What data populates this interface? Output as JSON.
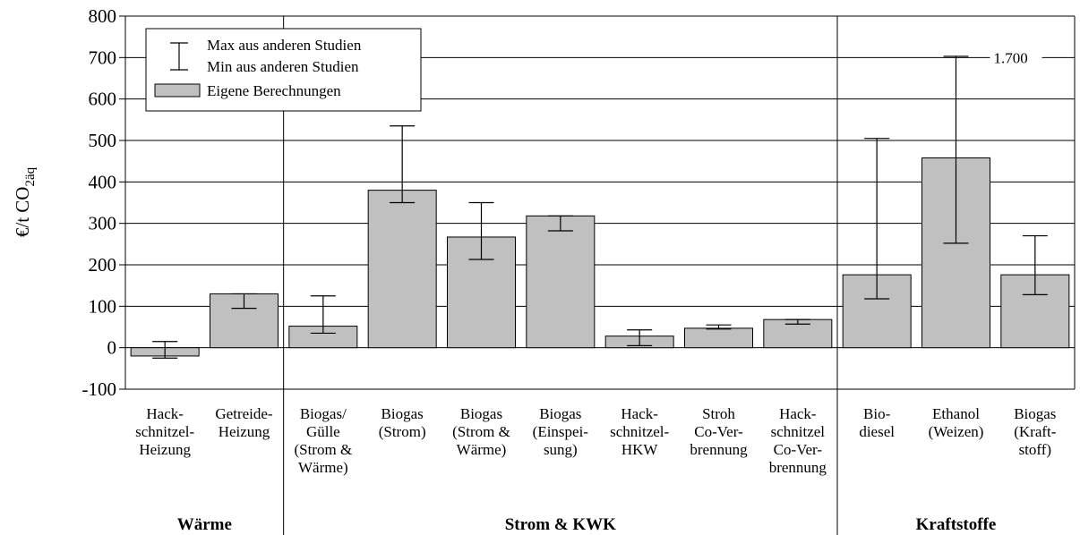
{
  "chart_data": {
    "type": "bar",
    "ylabel": "€/t CO",
    "ylabel_sub": "2äq",
    "ylim": [
      -100,
      800
    ],
    "yticks": [
      "-100",
      "0",
      "100",
      "200",
      "300",
      "400",
      "500",
      "600",
      "700",
      "800"
    ],
    "grid": "horizontal",
    "legend": {
      "placement": "top-left",
      "max_label": "Max aus anderen Studien",
      "min_label": "Min aus anderen Studien",
      "bar_label": "Eigene Berechnungen"
    },
    "categories": [
      {
        "label": [
          "Hack-",
          "schnitzel-",
          "Heizung"
        ],
        "value": -20,
        "min": -25,
        "max": 15
      },
      {
        "label": [
          "Getreide-",
          "Heizung"
        ],
        "value": 130,
        "min": 95,
        "max": 130
      },
      {
        "label": [
          "Biogas/",
          "Gülle",
          "(Strom &",
          "Wärme)"
        ],
        "value": 52,
        "min": 35,
        "max": 125
      },
      {
        "label": [
          "Biogas",
          "(Strom)"
        ],
        "value": 380,
        "min": 350,
        "max": 535
      },
      {
        "label": [
          "Biogas",
          "(Strom &",
          "Wärme)"
        ],
        "value": 267,
        "min": 213,
        "max": 350
      },
      {
        "label": [
          "Biogas",
          "(Einspei-",
          "sung)"
        ],
        "value": 318,
        "min": 282,
        "max": 318
      },
      {
        "label": [
          "Hack-",
          "schnitzel-",
          "HKW"
        ],
        "value": 28,
        "min": 5,
        "max": 43
      },
      {
        "label": [
          "Stroh",
          "Co-Ver-",
          "brennung"
        ],
        "value": 47,
        "min": 45,
        "max": 55
      },
      {
        "label": [
          "Hack-",
          "schnitzel",
          "Co-Ver-",
          "brennung"
        ],
        "value": 68,
        "min": 57,
        "max": 68
      },
      {
        "label": [
          "Bio-",
          "diesel"
        ],
        "value": 176,
        "min": 118,
        "max": 505
      },
      {
        "label": [
          "Ethanol",
          "(Weizen)"
        ],
        "value": 458,
        "min": 252,
        "max": 703
      },
      {
        "label": [
          "Biogas",
          "(Kraft-",
          "stoff)"
        ],
        "value": 176,
        "min": 128,
        "max": 270
      }
    ],
    "groups": [
      {
        "name": "Wärme",
        "count": 2
      },
      {
        "name": "Strom & KWK",
        "count": 7
      },
      {
        "name": "Kraftstoffe",
        "count": 3
      }
    ],
    "annotations": [
      {
        "category_index": 10,
        "text": "1.700"
      }
    ],
    "colors": {
      "bar": "#c0c0c0",
      "axis": "#000000"
    }
  }
}
